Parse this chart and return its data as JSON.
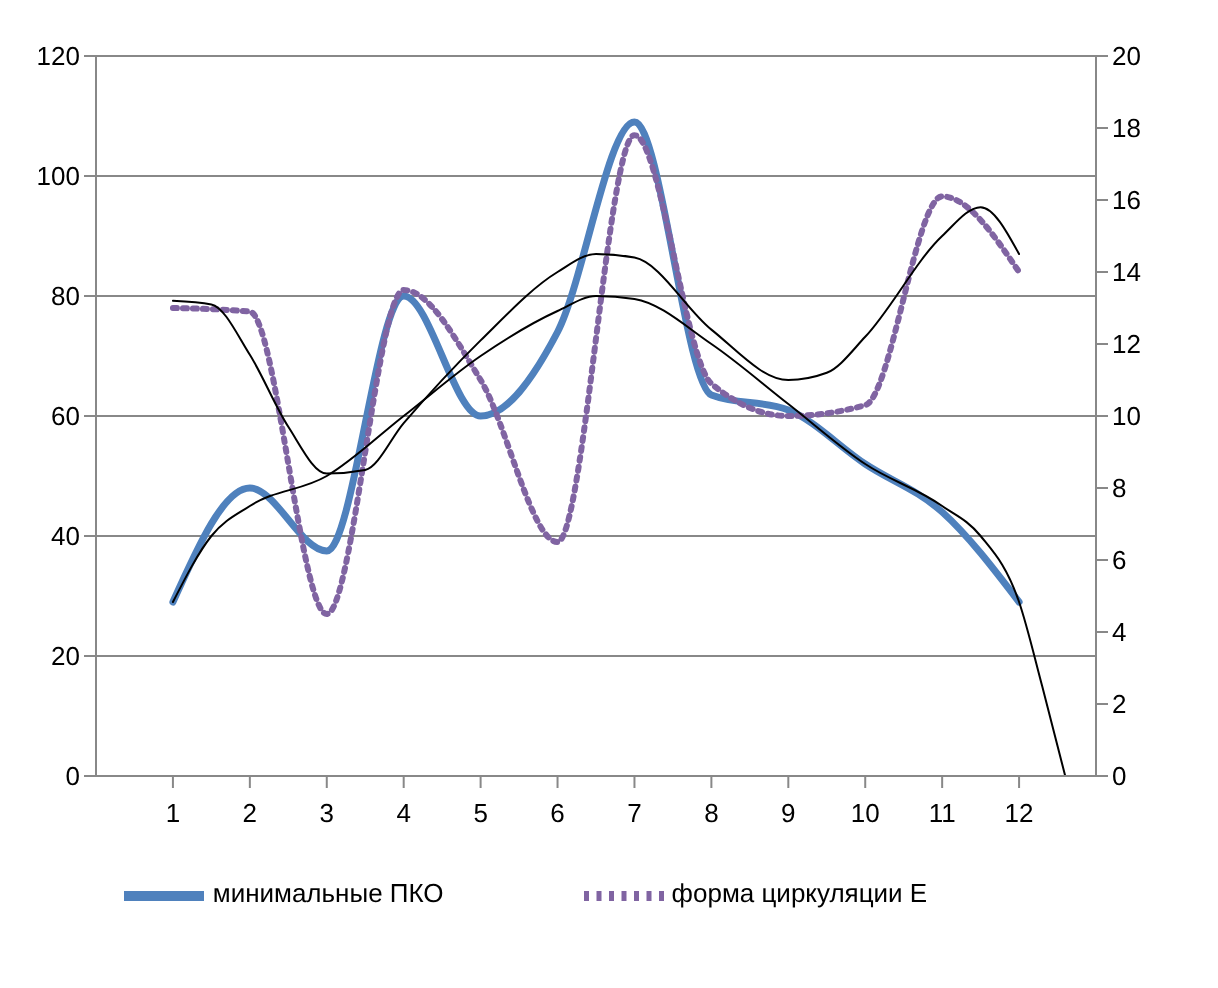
{
  "chart_data": {
    "type": "line",
    "xlim": [
      0,
      13
    ],
    "xticks": [
      1,
      2,
      3,
      4,
      5,
      6,
      7,
      8,
      9,
      10,
      11,
      12
    ],
    "ylim": [
      0,
      120
    ],
    "yticks": [
      0,
      20,
      40,
      60,
      80,
      100,
      120
    ],
    "y2lim": [
      0,
      20
    ],
    "y2ticks": [
      0,
      2,
      4,
      6,
      8,
      10,
      12,
      14,
      16,
      18,
      20
    ],
    "grid": "y",
    "legend": "bottom",
    "marker": "none",
    "series": [
      {
        "name": "минимальные ПКО",
        "color": "#4f81bd",
        "line_style": "solid",
        "x": [
          1,
          2,
          3,
          4,
          5,
          6,
          7,
          8,
          9,
          10,
          11,
          12
        ],
        "values": [
          29,
          48,
          37.5,
          80,
          60,
          74,
          109,
          63.5,
          61,
          52,
          44,
          29
        ]
      },
      {
        "name": "форма циркуляции Е",
        "color": "#8064a2",
        "line_style": "dotted",
        "axis": "y2",
        "x": [
          1,
          2,
          3,
          4,
          5,
          6,
          7,
          8,
          9,
          10,
          11,
          12
        ],
        "values": [
          13,
          12.9,
          4.5,
          13.5,
          11,
          6.5,
          17.8,
          10.9,
          10,
          10.3,
          16.1,
          14
        ]
      },
      {
        "color": "#000000",
        "line_style": "solid",
        "x": [
          1,
          1.5,
          2,
          3,
          4,
          5,
          6,
          6.5,
          7,
          8,
          9,
          10,
          11,
          11.5,
          12,
          12.3,
          12.6
        ],
        "values": [
          29,
          40,
          45,
          50,
          60,
          70,
          77.5,
          80,
          79.5,
          72,
          62,
          52,
          45,
          40,
          29,
          15,
          0
        ]
      },
      {
        "color": "#000000",
        "line_style": "solid",
        "axis": "y2",
        "x": [
          1,
          1.5,
          2,
          2.5,
          3,
          3.5,
          4,
          5,
          6,
          6.5,
          7,
          8,
          9,
          9.5,
          10,
          11,
          11.5,
          12
        ],
        "values": [
          13.2,
          13.1,
          11.7,
          9.7,
          8.4,
          8.5,
          9.8,
          12.1,
          14,
          14.5,
          14.4,
          12.4,
          11,
          11.2,
          12.2,
          15,
          15.8,
          14.5
        ]
      }
    ]
  }
}
